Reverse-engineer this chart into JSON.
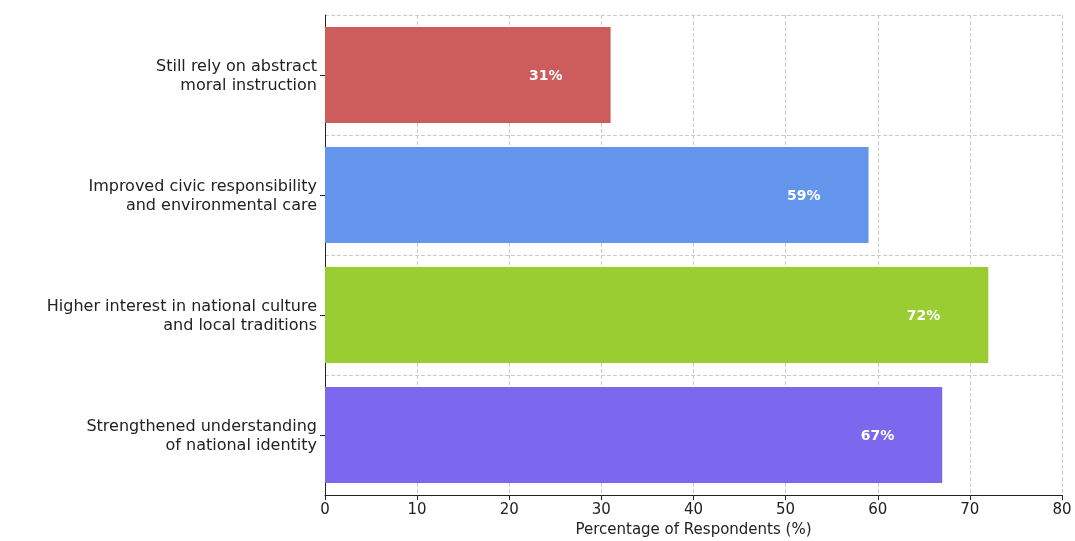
{
  "chart_data": {
    "type": "bar",
    "orientation": "horizontal",
    "categories": [
      "Still rely on abstract\nmoral instruction",
      "Improved civic responsibility\nand environmental care",
      "Higher interest in national culture\nand local traditions",
      "Strengthened understanding\nof national identity"
    ],
    "values": [
      31,
      59,
      72,
      67
    ],
    "colors": [
      "#cd5c5c",
      "#6495ed",
      "#9acd32",
      "#7b68ee"
    ],
    "value_labels": [
      "31%",
      "59%",
      "72%",
      "67%"
    ],
    "xlabel": "Percentage of Respondents (%)",
    "xlim": [
      0,
      80
    ],
    "xticks": [
      0,
      10,
      20,
      30,
      40,
      50,
      60,
      70,
      80
    ],
    "grid": true
  }
}
